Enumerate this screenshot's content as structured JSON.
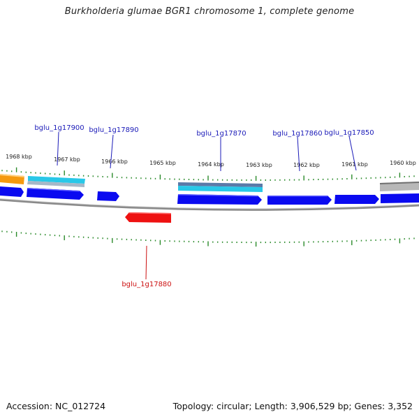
{
  "title": "Burkholderia glumae BGR1 chromosome 1, complete genome",
  "footer": {
    "accession": "Accession: NC_012724",
    "topology": "Topology: circular; Length: 3,906,529 bp; Genes: 3,352"
  },
  "colors": {
    "forward_gene": "#0a0af0",
    "reverse_gene": "#ee1111",
    "forward_label": "#1a1ab8",
    "reverse_label": "#cc1111",
    "tick": "#2a8a2a",
    "backbone": "#7a7a7a",
    "feature_cyan": "#28c8e8",
    "feature_orange": "#f59a10",
    "feature_gray": "#b8b8b8"
  },
  "scale_labels": [
    "1968 kbp",
    "1967 kbp",
    "1966 kbp",
    "1965 kbp",
    "1964 kbp",
    "1963 kbp",
    "1962 kbp",
    "1961 kbp",
    "1960 kbp"
  ],
  "gene_labels": [
    {
      "text": "bglu_1g17900",
      "strand": "forward"
    },
    {
      "text": "bglu_1g17890",
      "strand": "forward"
    },
    {
      "text": "bglu_1g17870",
      "strand": "forward"
    },
    {
      "text": "bglu_1g17860",
      "strand": "forward"
    },
    {
      "text": "bglu_1g17850",
      "strand": "forward"
    },
    {
      "text": "bglu_1g17880",
      "strand": "reverse"
    }
  ]
}
